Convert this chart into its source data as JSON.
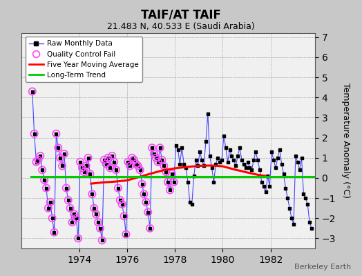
{
  "title": "TAIF/AT TAIF",
  "subtitle": "21.483 N, 40.533 E (Saudi Arabia)",
  "ylabel": "Temperature Anomaly (°C)",
  "watermark": "Berkeley Earth",
  "ylim": [
    -3.5,
    7.2
  ],
  "yticks": [
    -3,
    -2,
    -1,
    0,
    1,
    2,
    3,
    4,
    5,
    6,
    7
  ],
  "bg_color": "#c8c8c8",
  "plot_bg_color": "#f0f0f0",
  "raw_line_color": "#4444ff",
  "raw_marker_color": "#000000",
  "qc_fail_color": "#ff44ff",
  "moving_avg_color": "#ff0000",
  "trend_color": "#00cc00",
  "raw_data_times": [
    1972.042,
    1972.125,
    1972.208,
    1972.292,
    1972.375,
    1972.458,
    1972.542,
    1972.625,
    1972.708,
    1972.792,
    1972.875,
    1972.958,
    1973.042,
    1973.125,
    1973.208,
    1973.292,
    1973.375,
    1973.458,
    1973.542,
    1973.625,
    1973.708,
    1973.792,
    1973.875,
    1973.958,
    1974.042,
    1974.125,
    1974.208,
    1974.292,
    1974.375,
    1974.458,
    1974.542,
    1974.625,
    1974.708,
    1974.792,
    1974.875,
    1974.958,
    1975.042,
    1975.125,
    1975.208,
    1975.292,
    1975.375,
    1975.458,
    1975.542,
    1975.625,
    1975.708,
    1975.792,
    1975.875,
    1975.958,
    1976.042,
    1976.125,
    1976.208,
    1976.292,
    1976.375,
    1976.458,
    1976.542,
    1976.625,
    1976.708,
    1976.792,
    1976.875,
    1976.958,
    1977.042,
    1977.125,
    1977.208,
    1977.292,
    1977.375,
    1977.458,
    1977.542,
    1977.625,
    1977.708,
    1977.792,
    1977.875,
    1977.958,
    1978.042,
    1978.125,
    1978.208,
    1978.292,
    1978.375,
    1978.458,
    1978.542,
    1978.625,
    1978.708,
    1978.792,
    1978.875,
    1978.958,
    1979.042,
    1979.125,
    1979.208,
    1979.292,
    1979.375,
    1979.458,
    1979.542,
    1979.625,
    1979.708,
    1979.792,
    1979.875,
    1979.958,
    1980.042,
    1980.125,
    1980.208,
    1980.292,
    1980.375,
    1980.458,
    1980.542,
    1980.625,
    1980.708,
    1980.792,
    1980.875,
    1980.958,
    1981.042,
    1981.125,
    1981.208,
    1981.292,
    1981.375,
    1981.458,
    1981.542,
    1981.625,
    1981.708,
    1981.792,
    1981.875,
    1981.958,
    1982.042,
    1982.125,
    1982.208,
    1982.292,
    1982.375,
    1982.458,
    1982.542,
    1982.625,
    1982.708,
    1982.792,
    1982.875,
    1982.958,
    1983.042,
    1983.125,
    1983.208,
    1983.292,
    1983.375,
    1983.458,
    1983.542,
    1983.625,
    1983.708
  ],
  "raw_data_values": [
    4.3,
    2.2,
    0.8,
    0.9,
    1.1,
    0.4,
    -0.1,
    -0.5,
    -1.5,
    -1.2,
    -2.0,
    -2.7,
    2.2,
    1.5,
    1.0,
    0.6,
    1.2,
    -0.5,
    -1.1,
    -1.5,
    -2.2,
    -1.8,
    -2.0,
    -3.0,
    0.8,
    0.5,
    0.3,
    0.6,
    1.0,
    0.2,
    -0.8,
    -1.5,
    -1.8,
    -2.2,
    -2.5,
    -3.1,
    0.9,
    0.7,
    1.0,
    0.5,
    1.1,
    0.8,
    0.4,
    -0.5,
    -1.1,
    -1.3,
    -1.9,
    -2.8,
    0.8,
    0.6,
    1.0,
    0.9,
    0.7,
    0.6,
    0.4,
    -0.3,
    -0.8,
    -1.2,
    -1.7,
    -2.5,
    1.5,
    1.2,
    1.0,
    0.8,
    1.5,
    0.9,
    0.6,
    0.3,
    -0.2,
    -0.6,
    0.2,
    -0.2,
    1.6,
    1.4,
    0.7,
    1.5,
    0.7,
    0.5,
    -0.2,
    -1.2,
    -1.3,
    0.1,
    0.9,
    0.6,
    1.3,
    0.9,
    0.6,
    1.8,
    3.2,
    1.1,
    0.5,
    -0.2,
    0.7,
    1.0,
    0.8,
    0.9,
    2.1,
    1.5,
    0.8,
    1.4,
    1.1,
    0.9,
    0.6,
    1.1,
    1.5,
    0.9,
    0.7,
    0.5,
    0.8,
    0.5,
    0.4,
    0.9,
    1.3,
    0.9,
    0.4,
    -0.2,
    -0.4,
    -0.7,
    0.1,
    -0.4,
    1.3,
    0.9,
    0.5,
    1.0,
    1.4,
    0.7,
    0.2,
    -0.5,
    -1.0,
    -1.5,
    -2.0,
    -2.3,
    1.1,
    0.8,
    0.4,
    1.0,
    -0.8,
    -1.0,
    -1.3,
    -2.2,
    -2.5
  ],
  "qc_fail_mask": [
    1,
    1,
    1,
    1,
    1,
    1,
    1,
    1,
    1,
    1,
    1,
    1,
    1,
    1,
    1,
    1,
    1,
    1,
    1,
    1,
    1,
    1,
    1,
    1,
    1,
    1,
    1,
    1,
    1,
    1,
    1,
    1,
    1,
    1,
    1,
    1,
    1,
    1,
    1,
    1,
    1,
    1,
    1,
    1,
    1,
    1,
    1,
    1,
    1,
    1,
    1,
    1,
    1,
    1,
    1,
    1,
    1,
    1,
    1,
    1,
    1,
    1,
    1,
    1,
    1,
    1,
    1,
    1,
    1,
    1,
    1,
    1,
    0,
    0,
    0,
    0,
    0,
    0,
    0,
    0,
    0,
    0,
    0,
    0,
    0,
    0,
    0,
    0,
    0,
    0,
    0,
    0,
    0,
    0,
    0,
    0,
    0,
    0,
    0,
    0,
    0,
    0,
    0,
    0,
    0,
    0,
    0,
    0,
    0,
    0,
    0,
    0,
    0,
    0,
    0,
    0,
    0,
    0,
    0,
    0,
    0,
    0,
    0,
    0,
    0,
    0,
    0,
    0,
    0,
    0,
    0,
    0,
    0,
    0,
    0,
    0,
    0,
    0,
    0,
    0,
    0
  ],
  "moving_avg_times": [
    1974.5,
    1975.0,
    1975.5,
    1976.0,
    1976.5,
    1977.0,
    1977.5,
    1978.0,
    1978.5,
    1979.0,
    1979.5,
    1980.0,
    1980.5,
    1981.0,
    1981.5,
    1981.8
  ],
  "moving_avg_values": [
    -0.28,
    -0.22,
    -0.18,
    -0.12,
    0.05,
    0.22,
    0.38,
    0.48,
    0.55,
    0.6,
    0.62,
    0.58,
    0.42,
    0.28,
    0.15,
    0.1
  ],
  "trend_x": [
    1972.0,
    1983.8
  ],
  "trend_y": [
    0.07,
    0.07
  ],
  "xlim": [
    1971.6,
    1983.85
  ],
  "xticks": [
    1974,
    1976,
    1978,
    1980,
    1982
  ],
  "xticklabels": [
    "1974",
    "1976",
    "1978",
    "1980",
    "1982"
  ]
}
